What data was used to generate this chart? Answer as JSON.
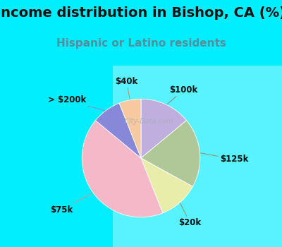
{
  "title": "Income distribution in Bishop, CA (%)",
  "subtitle": "Hispanic or Latino residents",
  "slices": [
    {
      "label": "$100k",
      "value": 14,
      "color": "#c0aede"
    },
    {
      "label": "$125k",
      "value": 19,
      "color": "#b0c898"
    },
    {
      "label": "$20k",
      "value": 11,
      "color": "#e8eeaa"
    },
    {
      "label": "$75k",
      "value": 42,
      "color": "#f4b8c8"
    },
    {
      "label": "> $200k",
      "value": 8,
      "color": "#8888d8"
    },
    {
      "label": "$40k",
      "value": 6,
      "color": "#f8c8a0"
    }
  ],
  "bg_color": "#00eeff",
  "chart_bg_left": "#c8e8c8",
  "chart_bg_right": "#e8f8f8",
  "title_color": "#111111",
  "subtitle_color": "#5090a0",
  "label_color": "#111111",
  "label_fontsize": 8.5,
  "title_fontsize": 14,
  "subtitle_fontsize": 11,
  "watermark": "City-Data.com"
}
